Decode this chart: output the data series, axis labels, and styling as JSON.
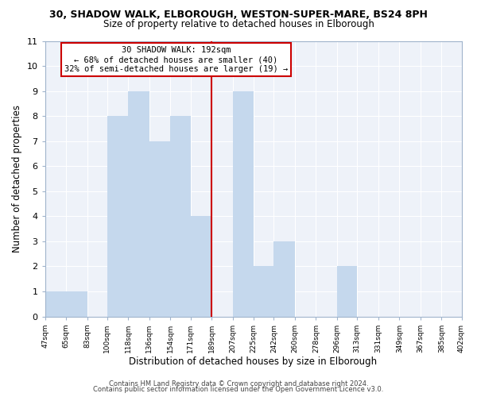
{
  "title_line1": "30, SHADOW WALK, ELBOROUGH, WESTON-SUPER-MARE, BS24 8PH",
  "title_line2": "Size of property relative to detached houses in Elborough",
  "xlabel": "Distribution of detached houses by size in Elborough",
  "ylabel": "Number of detached properties",
  "bin_edges": [
    47,
    65,
    83,
    100,
    118,
    136,
    154,
    171,
    189,
    207,
    225,
    242,
    260,
    278,
    296,
    313,
    331,
    349,
    367,
    385,
    402
  ],
  "counts": [
    1,
    1,
    0,
    8,
    9,
    7,
    8,
    4,
    0,
    9,
    2,
    3,
    0,
    0,
    2,
    0,
    0,
    0,
    0,
    0
  ],
  "bar_color": "#c5d8ed",
  "bar_edge_color": "#c5d8ed",
  "reference_line_x": 189,
  "reference_line_color": "#cc0000",
  "annotation_box_edge_color": "#cc0000",
  "annotation_text_line1": "30 SHADOW WALK: 192sqm",
  "annotation_text_line2": "← 68% of detached houses are smaller (40)",
  "annotation_text_line3": "32% of semi-detached houses are larger (19) →",
  "ylim": [
    0,
    11
  ],
  "yticks": [
    0,
    1,
    2,
    3,
    4,
    5,
    6,
    7,
    8,
    9,
    10,
    11
  ],
  "footer_line1": "Contains HM Land Registry data © Crown copyright and database right 2024.",
  "footer_line2": "Contains public sector information licensed under the Open Government Licence v3.0.",
  "background_color": "#ffffff",
  "plot_bg_color": "#eef2f9",
  "grid_color": "#ffffff"
}
